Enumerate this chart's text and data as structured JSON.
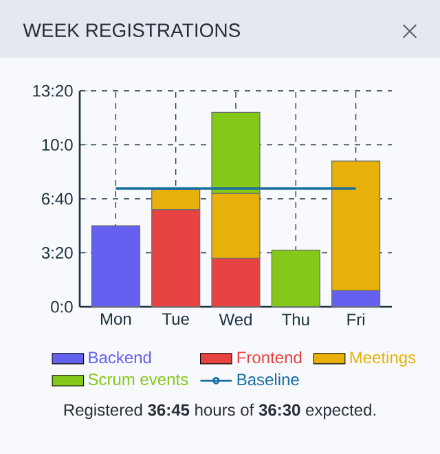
{
  "chart_data": {
    "type": "bar",
    "stacked": true,
    "title": "WEEK REGISTRATIONS",
    "categories": [
      "Mon",
      "Tue",
      "Wed",
      "Thu",
      "Fri"
    ],
    "series": [
      {
        "name": "Backend",
        "color": "#6461f0",
        "values": [
          5,
          null,
          null,
          null,
          1
        ]
      },
      {
        "name": "Frontend",
        "color": "#e84343",
        "values": [
          null,
          6,
          3,
          null,
          null
        ]
      },
      {
        "name": "Meetings",
        "color": "#e8b00a",
        "values": [
          null,
          1.25,
          4,
          null,
          8
        ]
      },
      {
        "name": "Scrum events",
        "color": "#84c81a",
        "values": [
          null,
          null,
          5,
          3.5,
          null
        ]
      },
      {
        "name": "Baseline",
        "type": "line",
        "color": "#1a6fa0",
        "values": [
          7.3,
          7.3,
          7.3,
          7.3,
          7.3
        ]
      }
    ],
    "ylim": [
      0,
      13.3333
    ],
    "yticks": [
      {
        "value": 0,
        "label": "0:0"
      },
      {
        "value": 3.3333,
        "label": "3:20"
      },
      {
        "value": 6.6667,
        "label": "6:40"
      },
      {
        "value": 10,
        "label": "10:0"
      },
      {
        "value": 13.3333,
        "label": "13:20"
      }
    ],
    "grid": true,
    "legend": "bottom",
    "annotations": [
      "Registered **36:45** hours of **36:30** expected."
    ]
  }
}
